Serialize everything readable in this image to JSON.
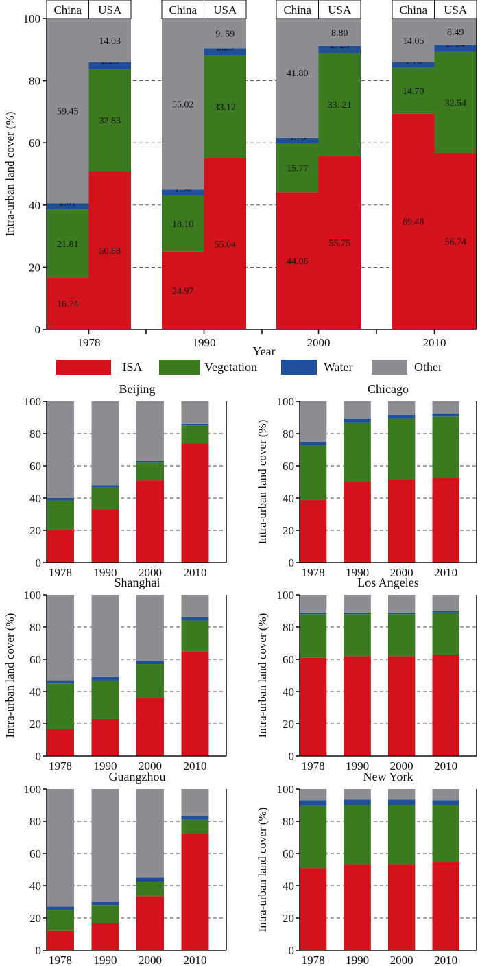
{
  "figure": {
    "legend": [
      {
        "label": "ISA",
        "color": "#d4121c"
      },
      {
        "label": "Vegetation",
        "color": "#3b7a1e"
      },
      {
        "label": "Water",
        "color": "#1f4f9a"
      },
      {
        "label": "Other",
        "color": "#8d8d92"
      }
    ]
  },
  "chart_data": [
    {
      "id": "main",
      "type": "bar",
      "stacked": true,
      "xlabel": "Year",
      "ylabel": "Intra-urban land cover (%)",
      "ylim": [
        0,
        100
      ],
      "yticks": [
        0,
        20,
        40,
        60,
        80,
        100
      ],
      "grid": "dashed horizontal at 20, 40, 60, 80",
      "categories": [
        "1978",
        "1990",
        "2000",
        "2010"
      ],
      "group_labels": [
        "China",
        "USA"
      ],
      "stack_order": [
        "ISA",
        "Vegetation",
        "Water",
        "Other"
      ],
      "groups": [
        {
          "year": "1978",
          "China": {
            "ISA": 16.74,
            "Vegetation": 21.81,
            "Water": 2.01,
            "Other": 59.45,
            "labels": [
              "16.74",
              "21.81",
              "2.01",
              "59.45"
            ]
          },
          "USA": {
            "ISA": 50.88,
            "Vegetation": 32.83,
            "Water": 2.25,
            "Other": 14.03,
            "labels": [
              "50.88",
              "32.83",
              "2.25",
              "14.03"
            ]
          }
        },
        {
          "year": "1990",
          "China": {
            "ISA": 24.97,
            "Vegetation": 18.1,
            "Water": 1.9,
            "Other": 55.02,
            "labels": [
              "24.97",
              "18.10",
              "1.90",
              "55.02"
            ]
          },
          "USA": {
            "ISA": 55.04,
            "Vegetation": 33.12,
            "Water": 2.25,
            "Other": 9.59,
            "labels": [
              "55.04",
              "33.12",
              "2.25",
              "9. 59"
            ]
          }
        },
        {
          "year": "2000",
          "China": {
            "ISA": 44.06,
            "Vegetation": 15.77,
            "Water": 1.78,
            "Other": 41.8,
            "labels": [
              "44.06",
              "15.77",
              "1.78",
              "41.80"
            ]
          },
          "USA": {
            "ISA": 55.75,
            "Vegetation": 33.21,
            "Water": 2.25,
            "Other": 8.8,
            "labels": [
              "55.75",
              "33. 21",
              "2. 25",
              "8.80"
            ]
          }
        },
        {
          "year": "2010",
          "China": {
            "ISA": 69.48,
            "Vegetation": 14.7,
            "Water": 1.76,
            "Other": 14.05,
            "labels": [
              "69.48",
              "14.70",
              "1.76",
              "14.05"
            ]
          },
          "USA": {
            "ISA": 56.74,
            "Vegetation": 32.54,
            "Water": 2.24,
            "Other": 8.49,
            "labels": [
              "56.74",
              "32.54",
              "2. 24",
              "8.49"
            ]
          }
        }
      ]
    },
    {
      "id": "beijing",
      "title": "Beijing",
      "type": "bar",
      "stacked": true,
      "ylabel": "",
      "ylim": [
        0,
        100
      ],
      "yticks": [
        0,
        20,
        40,
        60,
        80,
        100
      ],
      "categories": [
        "1978",
        "1990",
        "2000",
        "2010"
      ],
      "series": [
        {
          "name": "ISA",
          "values": [
            20,
            33,
            51,
            74
          ]
        },
        {
          "name": "Vegetation",
          "values": [
            18.5,
            13.5,
            11,
            11
          ]
        },
        {
          "name": "Water",
          "values": [
            1.5,
            1.5,
            1,
            1
          ]
        },
        {
          "name": "Other",
          "values": [
            60,
            52,
            37,
            14
          ]
        }
      ]
    },
    {
      "id": "chicago",
      "title": "Chicago",
      "type": "bar",
      "stacked": true,
      "ylabel": "Intra-urban land cover (%)",
      "ylim": [
        0,
        100
      ],
      "yticks": [
        0,
        20,
        40,
        60,
        80,
        100
      ],
      "categories": [
        "1978",
        "1990",
        "2000",
        "2010"
      ],
      "series": [
        {
          "name": "ISA",
          "values": [
            39,
            50,
            51.5,
            52.5
          ]
        },
        {
          "name": "Vegetation",
          "values": [
            34,
            37,
            38,
            38
          ]
        },
        {
          "name": "Water",
          "values": [
            2,
            2.5,
            2,
            2
          ]
        },
        {
          "name": "Other",
          "values": [
            25,
            10.5,
            8.5,
            7.5
          ]
        }
      ]
    },
    {
      "id": "shanghai",
      "title": "Shanghai",
      "type": "bar",
      "stacked": true,
      "ylabel": "Intra-urban land cover (%)",
      "ylim": [
        0,
        100
      ],
      "yticks": [
        0,
        20,
        40,
        60,
        80,
        100
      ],
      "categories": [
        "1978",
        "1990",
        "2000",
        "2010"
      ],
      "series": [
        {
          "name": "ISA",
          "values": [
            17,
            23,
            36,
            65
          ]
        },
        {
          "name": "Vegetation",
          "values": [
            28,
            24,
            21,
            19
          ]
        },
        {
          "name": "Water",
          "values": [
            2,
            2,
            2,
            2
          ]
        },
        {
          "name": "Other",
          "values": [
            53,
            51,
            41,
            14
          ]
        }
      ]
    },
    {
      "id": "los-angeles",
      "title": "Los Angeles",
      "type": "bar",
      "stacked": true,
      "ylabel": "Intra-urban land cover (%)",
      "ylim": [
        0,
        100
      ],
      "yticks": [
        0,
        20,
        40,
        60,
        80,
        100
      ],
      "categories": [
        "1978",
        "1990",
        "2000",
        "2010"
      ],
      "series": [
        {
          "name": "ISA",
          "values": [
            61,
            62,
            62,
            63
          ]
        },
        {
          "name": "Vegetation",
          "values": [
            27,
            26,
            26,
            26
          ]
        },
        {
          "name": "Water",
          "values": [
            1,
            1,
            1,
            1
          ]
        },
        {
          "name": "Other",
          "values": [
            11,
            11,
            11,
            10
          ]
        }
      ]
    },
    {
      "id": "guangzhou",
      "title": "Guangzhou",
      "type": "bar",
      "stacked": true,
      "ylabel": "",
      "ylim": [
        0,
        100
      ],
      "yticks": [
        0,
        20,
        40,
        60,
        80,
        100
      ],
      "categories": [
        "1978",
        "1990",
        "2000",
        "2010"
      ],
      "series": [
        {
          "name": "ISA",
          "values": [
            12,
            17,
            33.5,
            72
          ]
        },
        {
          "name": "Vegetation",
          "values": [
            13,
            11,
            9,
            9
          ]
        },
        {
          "name": "Water",
          "values": [
            2,
            2,
            2.5,
            2
          ]
        },
        {
          "name": "Other",
          "values": [
            73,
            70,
            55,
            17
          ]
        }
      ]
    },
    {
      "id": "new-york",
      "title": "New York",
      "type": "bar",
      "stacked": true,
      "ylabel": "Intra-urban land cover (%)",
      "ylim": [
        0,
        100
      ],
      "yticks": [
        0,
        20,
        40,
        60,
        80,
        100
      ],
      "categories": [
        "1978",
        "1990",
        "2000",
        "2010"
      ],
      "series": [
        {
          "name": "ISA",
          "values": [
            51,
            53,
            53,
            54.5
          ]
        },
        {
          "name": "Vegetation",
          "values": [
            38.5,
            37,
            37,
            35.5
          ]
        },
        {
          "name": "Water",
          "values": [
            3.5,
            3.5,
            3.5,
            3
          ]
        },
        {
          "name": "Other",
          "values": [
            7,
            6.5,
            6.5,
            7
          ]
        }
      ]
    }
  ]
}
